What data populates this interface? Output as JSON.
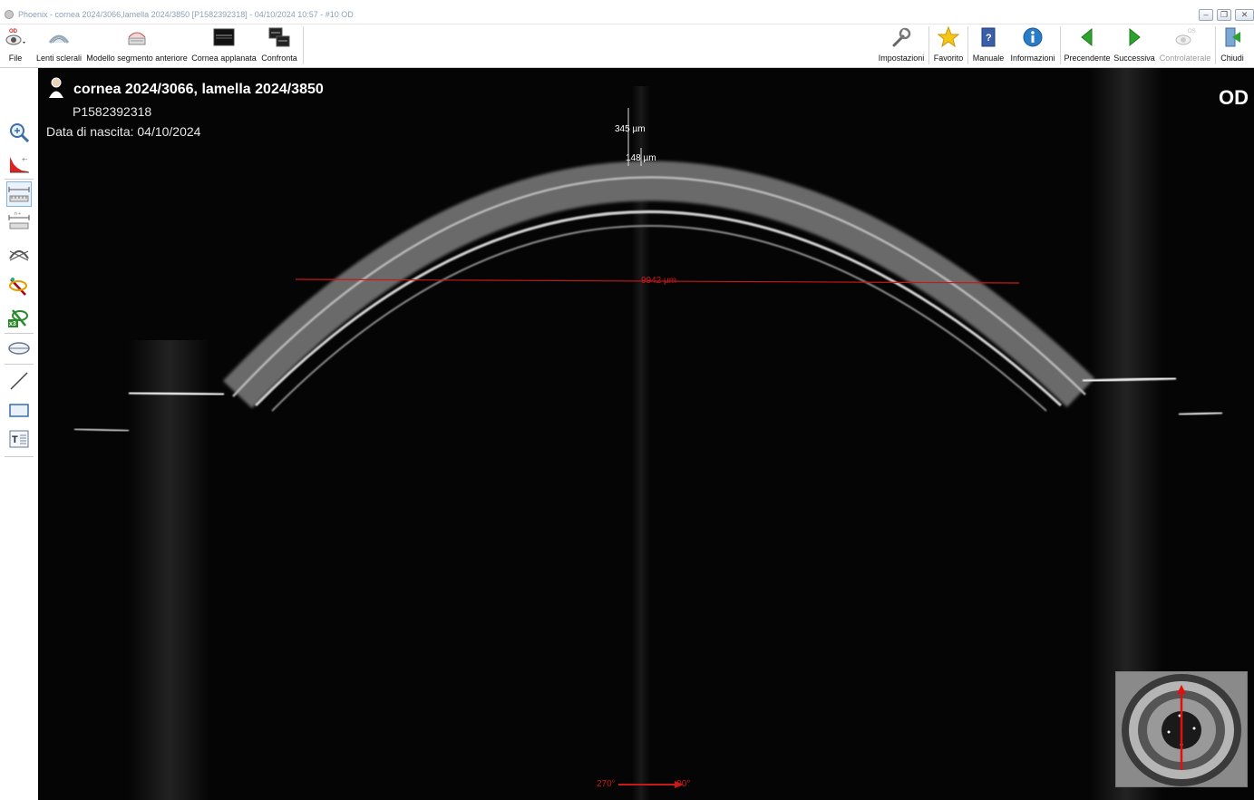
{
  "window": {
    "title": "Phoenix - cornea 2024/3066,lamella 2024/3850 [P1582392318] - 04/10/2024 10:57 - #10 OD"
  },
  "toolbar": {
    "left": [
      {
        "id": "file",
        "label": "File",
        "icon": "eye-od-icon"
      },
      {
        "id": "lenti",
        "label": "Lenti sclerali",
        "icon": "scleral-lens-icon"
      },
      {
        "id": "modello",
        "label": "Modello segmento anteriore",
        "icon": "anterior-segment-icon"
      },
      {
        "id": "cornea",
        "label": "Cornea applanata",
        "icon": "flat-cornea-icon"
      },
      {
        "id": "confronta",
        "label": "Confronta",
        "icon": "compare-icon"
      }
    ],
    "right": [
      {
        "id": "impostazioni",
        "label": "Impostazioni",
        "icon": "wrench-icon",
        "enabled": true
      },
      {
        "id": "favorito",
        "label": "Favorito",
        "icon": "star-icon",
        "enabled": true
      },
      {
        "id": "manuale",
        "label": "Manuale",
        "icon": "help-book-icon",
        "enabled": true
      },
      {
        "id": "informazioni",
        "label": "Informazioni",
        "icon": "info-icon",
        "enabled": true
      },
      {
        "id": "precendente",
        "label": "Precendente",
        "icon": "arrow-left-icon",
        "enabled": true
      },
      {
        "id": "successiva",
        "label": "Successiva",
        "icon": "arrow-right-icon",
        "enabled": true
      },
      {
        "id": "controlaterale",
        "label": "Controlaterale",
        "icon": "contralateral-icon",
        "enabled": false
      },
      {
        "id": "chiudi",
        "label": "Chiudi",
        "icon": "exit-door-icon",
        "enabled": true
      }
    ],
    "file_badge": "OD"
  },
  "sidebar": {
    "tools": [
      "zoom-icon",
      "histogram-icon",
      "caliper-icon",
      "caliper-multi-icon",
      "angle-icon",
      "magic-measure-icon",
      "magic-measure-x3-icon",
      "lens-shape-icon",
      "line-icon",
      "rectangle-icon",
      "text-icon"
    ],
    "x3_label": "x3",
    "text_tool_label": "T"
  },
  "patient": {
    "name": "cornea 2024/3066, lamella 2024/3850",
    "id": "P1582392318",
    "dob": "Data di nascita: 04/10/2024"
  },
  "eye": "OD",
  "measurements": {
    "thickness_total": "345 µm",
    "thickness_lamella": "148 µm",
    "diameter": "9942 µm"
  },
  "scan_direction": {
    "from": "270°",
    "to": "90°"
  },
  "colors": {
    "measure_red": "#c81818",
    "background": "#050505"
  }
}
